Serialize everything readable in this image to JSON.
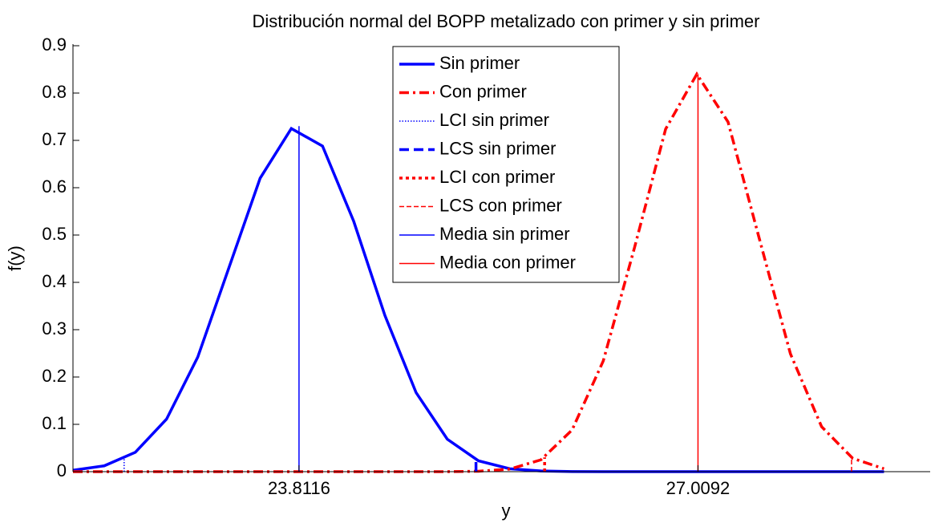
{
  "chart_data": {
    "type": "line",
    "title": "Distribución normal del BOPP metalizado con primer y sin primer",
    "x_label": "y",
    "y_label": "f(y)",
    "xlim": [
      22.0,
      28.87
    ],
    "xticks": [
      23.8116,
      27.0092
    ],
    "ylim": [
      0,
      0.9
    ],
    "yticks": [
      0,
      0.1,
      0.2,
      0.3,
      0.4,
      0.5,
      0.6,
      0.7,
      0.8,
      0.9
    ],
    "legend": "top",
    "series": [
      {
        "name": "Sin primer",
        "color": "#0000ff",
        "linestyle": "solid",
        "linewidth": 3.5,
        "x": [
          22.0,
          22.25,
          22.5,
          22.75,
          23.0,
          23.25,
          23.5,
          23.75,
          24.0,
          24.25,
          24.5,
          24.75,
          25.0,
          25.25,
          25.5,
          25.75,
          26.0,
          26.25,
          26.5,
          26.75,
          27.0,
          27.25,
          27.5,
          27.75,
          28.0,
          28.25,
          28.5
        ],
        "values": [
          0.003,
          0.0123,
          0.041,
          0.111,
          0.242,
          0.431,
          0.62,
          0.725,
          0.688,
          0.529,
          0.33,
          0.167,
          0.0686,
          0.0229,
          0.0062,
          0.0014,
          0.0002,
          0,
          0,
          0,
          0,
          0,
          0,
          0,
          0,
          0,
          0
        ]
      },
      {
        "name": "Con primer",
        "color": "#ff0000",
        "linestyle": "dashdot",
        "linewidth": 3.5,
        "x": [
          22.0,
          22.25,
          22.5,
          22.75,
          23.0,
          23.25,
          23.5,
          23.75,
          24.0,
          24.25,
          24.5,
          24.75,
          25.0,
          25.25,
          25.5,
          25.75,
          26.0,
          26.25,
          26.5,
          26.75,
          27.0,
          27.25,
          27.5,
          27.75,
          28.0,
          28.25,
          28.5
        ],
        "values": [
          0,
          0,
          0,
          0,
          0,
          0,
          0,
          0,
          0,
          0,
          0,
          0,
          0.0001,
          0.0009,
          0.0054,
          0.025,
          0.088,
          0.234,
          0.473,
          0.724,
          0.84,
          0.739,
          0.493,
          0.249,
          0.095,
          0.028,
          0.0061
        ]
      },
      {
        "name": "LCI sin primer",
        "color": "#0000ff",
        "linestyle": "dotted",
        "linewidth": 1.5,
        "x": [
          22.41,
          22.41
        ],
        "values": [
          0,
          0.027
        ]
      },
      {
        "name": "LCS sin primer",
        "color": "#0000ff",
        "linestyle": "dashed",
        "linewidth": 3.5,
        "x": [
          25.23,
          25.23
        ],
        "values": [
          0,
          0.025
        ]
      },
      {
        "name": "LCI con primer",
        "color": "#ff0000",
        "linestyle": "dotted",
        "linewidth": 3.5,
        "x": [
          25.78,
          25.78
        ],
        "values": [
          0,
          0.03
        ]
      },
      {
        "name": "LCS con primer",
        "color": "#ff0000",
        "linestyle": "dashed",
        "linewidth": 1.5,
        "x": [
          28.24,
          28.24
        ],
        "values": [
          0,
          0.03
        ]
      },
      {
        "name": "Media sin primer",
        "color": "#0000ff",
        "linestyle": "solid",
        "linewidth": 1.5,
        "x": [
          23.8116,
          23.8116
        ],
        "values": [
          0,
          0.73
        ]
      },
      {
        "name": "Media con primer",
        "color": "#ff0000",
        "linestyle": "solid",
        "linewidth": 1.5,
        "x": [
          27.0092,
          27.0092
        ],
        "values": [
          0,
          0.84
        ]
      }
    ]
  }
}
